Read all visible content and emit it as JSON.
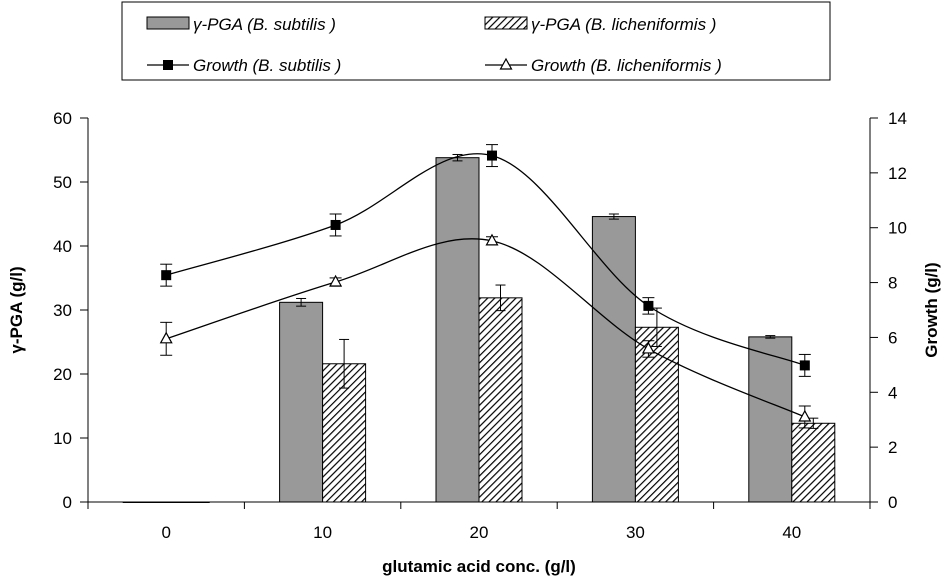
{
  "chart_data": {
    "type": "bar",
    "categories": [
      "0",
      "10",
      "20",
      "30",
      "40"
    ],
    "x": [
      0,
      10,
      20,
      30,
      40
    ],
    "xlabel": "glutamic acid conc. (g/l)",
    "ylabel": "γ-PGA (g/l)",
    "y2label": "Growth (g/l)",
    "ylim": [
      0,
      60
    ],
    "y2lim": [
      0,
      14
    ],
    "yticks": [
      0,
      10,
      20,
      30,
      40,
      50,
      60
    ],
    "y2ticks": [
      0,
      2,
      4,
      6,
      8,
      10,
      12,
      14
    ],
    "grid": false,
    "legend_position": "top",
    "bar_series": [
      {
        "name": "γ-PGA (B. subtilis )",
        "values": [
          0,
          31.2,
          53.8,
          44.6,
          25.8
        ],
        "errors": [
          0,
          0.6,
          0.5,
          0.4,
          0.2
        ],
        "fill": "#999999",
        "pattern": "solid"
      },
      {
        "name": "γ-PGA (B. licheniformis )",
        "values": [
          0,
          21.6,
          31.9,
          27.3,
          12.3
        ],
        "errors": [
          0,
          3.8,
          2.0,
          3.0,
          0.8
        ],
        "fill": "#ffffff",
        "pattern": "diagonal-hatch"
      }
    ],
    "line_series": [
      {
        "name": "Growth (B. subtilis )",
        "axis": "right",
        "marker": "square",
        "values": [
          8.27,
          10.1,
          12.63,
          7.15,
          4.98
        ],
        "errors": [
          0.4,
          0.4,
          0.4,
          0.3,
          0.4
        ]
      },
      {
        "name": "Growth (B. licheniformis )",
        "axis": "right",
        "marker": "triangle",
        "values": [
          5.95,
          8.02,
          9.52,
          5.58,
          3.1
        ],
        "errors": [
          0.6,
          0.15,
          0.15,
          0.3,
          0.4
        ]
      }
    ]
  }
}
